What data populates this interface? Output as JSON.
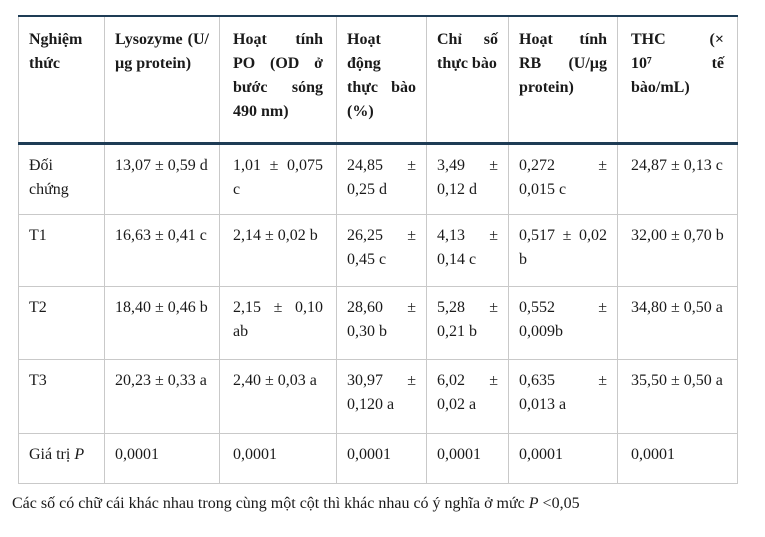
{
  "table": {
    "accent_color": "#1e3c55",
    "grid_color": "#c9c9c9",
    "columns": [
      "Nghiệm thức",
      "Lysozyme (U/µg protein)",
      "Hoạt tính PO (OD ở bước sóng 490 nm)",
      "Hoạt động thực bào (%)",
      "Chỉ số thực bào",
      "Hoạt tính RB (U/µg protein)",
      "THC (× 10⁷ tế bào/mL)"
    ],
    "rows": [
      {
        "label": "Đối chứng",
        "values": [
          "13,07 ± 0,59 d",
          "1,01 ± 0,075 c",
          "24,85 ± 0,25 d",
          "3,49 ± 0,12 d",
          "0,272 ± 0,015 c",
          "24,87 ± 0,13 c"
        ]
      },
      {
        "label": "T1",
        "values": [
          "16,63 ± 0,41 c",
          "2,14 ± 0,02 b",
          "26,25 ± 0,45 c",
          "4,13 ± 0,14 c",
          "0,517 ± 0,02 b",
          "32,00 ± 0,70 b"
        ]
      },
      {
        "label": "T2",
        "values": [
          "18,40 ± 0,46 b",
          "2,15 ± 0,10 ab",
          "28,60 ± 0,30 b",
          "5,28 ± 0,21 b",
          "0,552 ± 0,009b",
          "34,80 ± 0,50 a"
        ]
      },
      {
        "label": "T3",
        "values": [
          "20,23 ± 0,33 a",
          "2,40 ± 0,03 a",
          "30,97 ± 0,120 a",
          "6,02 ± 0,02 a",
          "0,635 ± 0,013 a",
          "35,50 ± 0,50 a"
        ]
      }
    ],
    "p_row": {
      "label_prefix": "Giá trị ",
      "label_italic": "P",
      "values": [
        "0,0001",
        "0,0001",
        "0,0001",
        "0,0001",
        "0,0001",
        "0,0001"
      ]
    }
  },
  "footnote": {
    "text": "Các số có chữ cái khác nhau trong cùng một cột thì khác nhau có ý nghĩa ở mức ",
    "p_symbol": "P",
    "suffix": " <0,05"
  }
}
